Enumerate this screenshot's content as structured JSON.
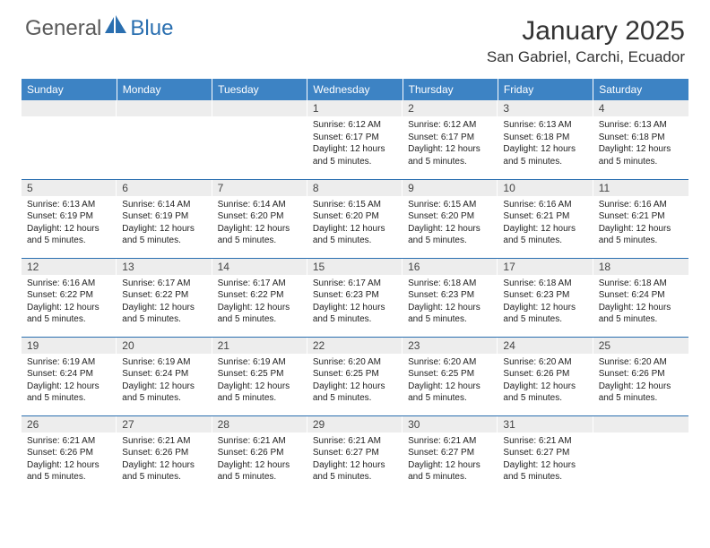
{
  "logo": {
    "text1": "General",
    "text2": "Blue"
  },
  "title": "January 2025",
  "location": "San Gabriel, Carchi, Ecuador",
  "colors": {
    "header_bg": "#3d83c4",
    "header_text": "#ffffff",
    "daynum_bg": "#ededed",
    "border": "#2a6fb0",
    "logo_gray": "#5a5a5a",
    "logo_blue": "#2a6fb0"
  },
  "weekdays": [
    "Sunday",
    "Monday",
    "Tuesday",
    "Wednesday",
    "Thursday",
    "Friday",
    "Saturday"
  ],
  "weeks": [
    [
      {
        "n": "",
        "empty": true
      },
      {
        "n": "",
        "empty": true
      },
      {
        "n": "",
        "empty": true
      },
      {
        "n": "1",
        "sr": "6:12 AM",
        "ss": "6:17 PM",
        "dl": "12 hours and 5 minutes."
      },
      {
        "n": "2",
        "sr": "6:12 AM",
        "ss": "6:17 PM",
        "dl": "12 hours and 5 minutes."
      },
      {
        "n": "3",
        "sr": "6:13 AM",
        "ss": "6:18 PM",
        "dl": "12 hours and 5 minutes."
      },
      {
        "n": "4",
        "sr": "6:13 AM",
        "ss": "6:18 PM",
        "dl": "12 hours and 5 minutes."
      }
    ],
    [
      {
        "n": "5",
        "sr": "6:13 AM",
        "ss": "6:19 PM",
        "dl": "12 hours and 5 minutes."
      },
      {
        "n": "6",
        "sr": "6:14 AM",
        "ss": "6:19 PM",
        "dl": "12 hours and 5 minutes."
      },
      {
        "n": "7",
        "sr": "6:14 AM",
        "ss": "6:20 PM",
        "dl": "12 hours and 5 minutes."
      },
      {
        "n": "8",
        "sr": "6:15 AM",
        "ss": "6:20 PM",
        "dl": "12 hours and 5 minutes."
      },
      {
        "n": "9",
        "sr": "6:15 AM",
        "ss": "6:20 PM",
        "dl": "12 hours and 5 minutes."
      },
      {
        "n": "10",
        "sr": "6:16 AM",
        "ss": "6:21 PM",
        "dl": "12 hours and 5 minutes."
      },
      {
        "n": "11",
        "sr": "6:16 AM",
        "ss": "6:21 PM",
        "dl": "12 hours and 5 minutes."
      }
    ],
    [
      {
        "n": "12",
        "sr": "6:16 AM",
        "ss": "6:22 PM",
        "dl": "12 hours and 5 minutes."
      },
      {
        "n": "13",
        "sr": "6:17 AM",
        "ss": "6:22 PM",
        "dl": "12 hours and 5 minutes."
      },
      {
        "n": "14",
        "sr": "6:17 AM",
        "ss": "6:22 PM",
        "dl": "12 hours and 5 minutes."
      },
      {
        "n": "15",
        "sr": "6:17 AM",
        "ss": "6:23 PM",
        "dl": "12 hours and 5 minutes."
      },
      {
        "n": "16",
        "sr": "6:18 AM",
        "ss": "6:23 PM",
        "dl": "12 hours and 5 minutes."
      },
      {
        "n": "17",
        "sr": "6:18 AM",
        "ss": "6:23 PM",
        "dl": "12 hours and 5 minutes."
      },
      {
        "n": "18",
        "sr": "6:18 AM",
        "ss": "6:24 PM",
        "dl": "12 hours and 5 minutes."
      }
    ],
    [
      {
        "n": "19",
        "sr": "6:19 AM",
        "ss": "6:24 PM",
        "dl": "12 hours and 5 minutes."
      },
      {
        "n": "20",
        "sr": "6:19 AM",
        "ss": "6:24 PM",
        "dl": "12 hours and 5 minutes."
      },
      {
        "n": "21",
        "sr": "6:19 AM",
        "ss": "6:25 PM",
        "dl": "12 hours and 5 minutes."
      },
      {
        "n": "22",
        "sr": "6:20 AM",
        "ss": "6:25 PM",
        "dl": "12 hours and 5 minutes."
      },
      {
        "n": "23",
        "sr": "6:20 AM",
        "ss": "6:25 PM",
        "dl": "12 hours and 5 minutes."
      },
      {
        "n": "24",
        "sr": "6:20 AM",
        "ss": "6:26 PM",
        "dl": "12 hours and 5 minutes."
      },
      {
        "n": "25",
        "sr": "6:20 AM",
        "ss": "6:26 PM",
        "dl": "12 hours and 5 minutes."
      }
    ],
    [
      {
        "n": "26",
        "sr": "6:21 AM",
        "ss": "6:26 PM",
        "dl": "12 hours and 5 minutes."
      },
      {
        "n": "27",
        "sr": "6:21 AM",
        "ss": "6:26 PM",
        "dl": "12 hours and 5 minutes."
      },
      {
        "n": "28",
        "sr": "6:21 AM",
        "ss": "6:26 PM",
        "dl": "12 hours and 5 minutes."
      },
      {
        "n": "29",
        "sr": "6:21 AM",
        "ss": "6:27 PM",
        "dl": "12 hours and 5 minutes."
      },
      {
        "n": "30",
        "sr": "6:21 AM",
        "ss": "6:27 PM",
        "dl": "12 hours and 5 minutes."
      },
      {
        "n": "31",
        "sr": "6:21 AM",
        "ss": "6:27 PM",
        "dl": "12 hours and 5 minutes."
      },
      {
        "n": "",
        "empty": true
      }
    ]
  ],
  "labels": {
    "sunrise": "Sunrise:",
    "sunset": "Sunset:",
    "daylight": "Daylight:"
  }
}
